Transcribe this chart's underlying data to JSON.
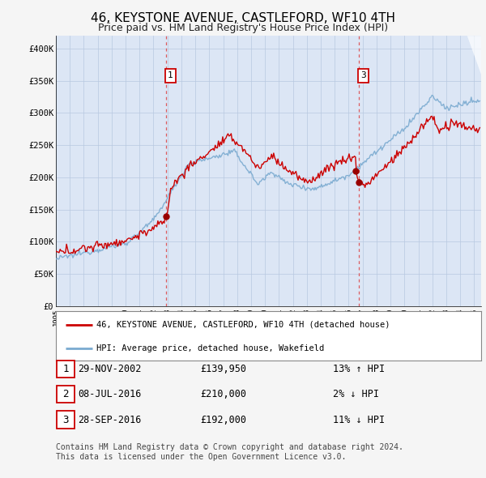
{
  "title": "46, KEYSTONE AVENUE, CASTLEFORD, WF10 4TH",
  "subtitle": "Price paid vs. HM Land Registry's House Price Index (HPI)",
  "title_fontsize": 11,
  "subtitle_fontsize": 9,
  "ylim": [
    0,
    420000
  ],
  "yticks": [
    0,
    50000,
    100000,
    150000,
    200000,
    250000,
    300000,
    350000,
    400000
  ],
  "ytick_labels": [
    "£0",
    "£50K",
    "£100K",
    "£150K",
    "£200K",
    "£250K",
    "£300K",
    "£350K",
    "£400K"
  ],
  "xlim_start": 1995.0,
  "xlim_end": 2025.5,
  "background_color": "#f5f5f5",
  "plot_bg_color": "#dce6f5",
  "grid_color": "#b8c8e0",
  "red_line_color": "#cc0000",
  "blue_line_color": "#7aaad0",
  "dashed_line_color": "#dd4444",
  "sale_marker_color": "#990000",
  "legend_label_red": "46, KEYSTONE AVENUE, CASTLEFORD, WF10 4TH (detached house)",
  "legend_label_blue": "HPI: Average price, detached house, Wakefield",
  "transactions": [
    {
      "num": 1,
      "date": "29-NOV-2002",
      "price": "£139,950",
      "pct": "13%",
      "dir": "↑",
      "year": 2002.92,
      "value": 139950
    },
    {
      "num": 2,
      "date": "08-JUL-2016",
      "price": "£210,000",
      "pct": "2%",
      "dir": "↓",
      "year": 2016.52,
      "value": 210000
    },
    {
      "num": 3,
      "date": "28-SEP-2016",
      "price": "£192,000",
      "pct": "11%",
      "dir": "↓",
      "year": 2016.75,
      "value": 192000
    }
  ],
  "footer_line1": "Contains HM Land Registry data © Crown copyright and database right 2024.",
  "footer_line2": "This data is licensed under the Open Government Licence v3.0.",
  "footnote_fontsize": 7.0
}
